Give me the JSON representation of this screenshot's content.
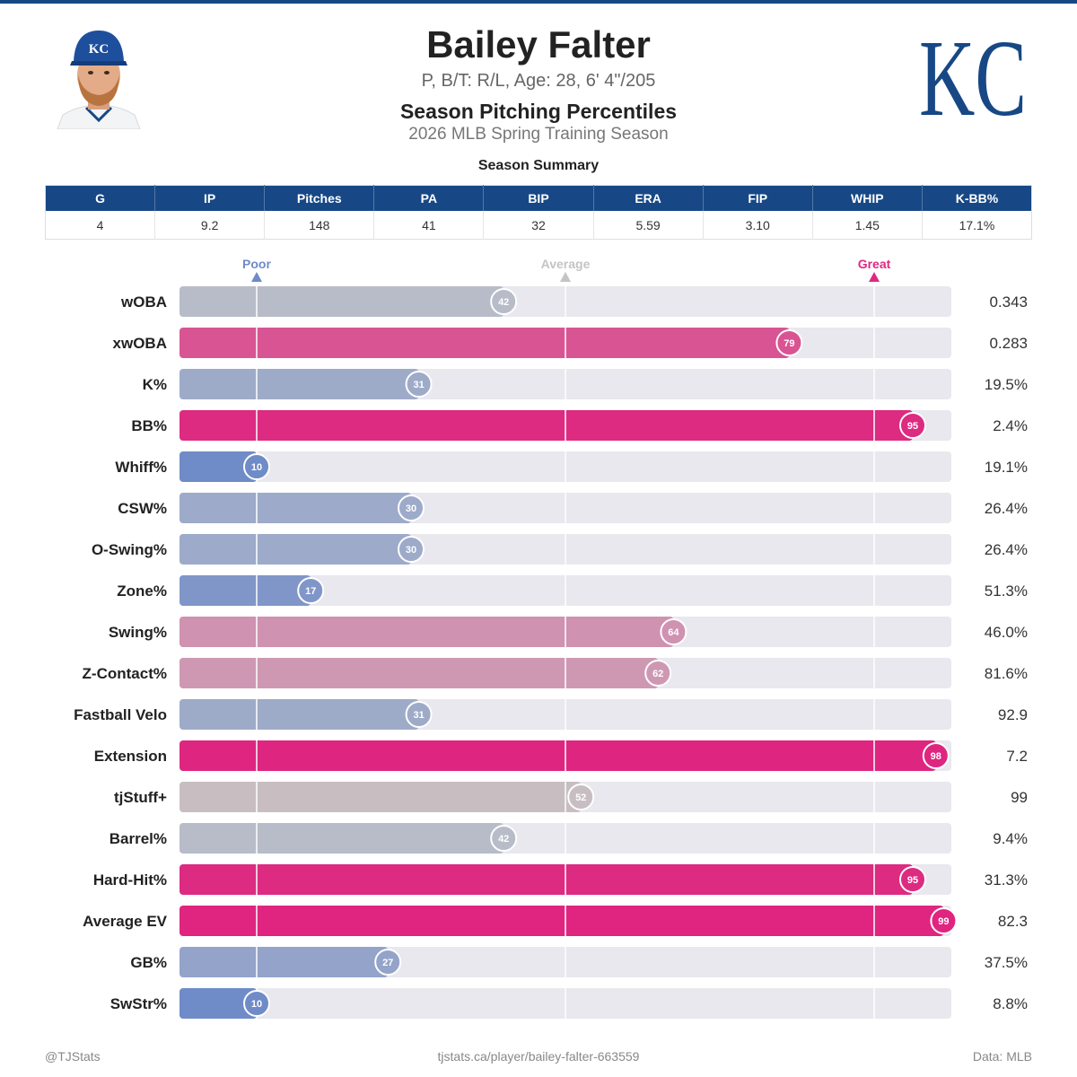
{
  "header": {
    "player_name": "Bailey Falter",
    "bio": "P, B/T: R/L, Age: 28, 6' 4\"/205",
    "report_title": "Season Pitching Percentiles",
    "season": "2026 MLB Spring Training Season",
    "team_logo_text": "KC",
    "cap_logo_text": "KC"
  },
  "summary": {
    "title": "Season Summary",
    "columns": [
      "G",
      "IP",
      "Pitches",
      "PA",
      "BIP",
      "ERA",
      "FIP",
      "WHIP",
      "K-BB%"
    ],
    "values": [
      "4",
      "9.2",
      "148",
      "41",
      "32",
      "5.59",
      "3.10",
      "1.45",
      "17.1%"
    ]
  },
  "colors": {
    "team_blue": "#174885",
    "poor": "#6f8bc8",
    "average": "#c4c4c4",
    "great": "#de2a82",
    "track": "#e8e8ee"
  },
  "chart_data": {
    "type": "bar",
    "orientation": "horizontal",
    "xlim": [
      0,
      100
    ],
    "markers": [
      {
        "label": "Poor",
        "value": 10,
        "color": "#6f8bc8"
      },
      {
        "label": "Average",
        "value": 50,
        "color": "#c4c4c4"
      },
      {
        "label": "Great",
        "value": 90,
        "color": "#de2a82"
      }
    ],
    "rows": [
      {
        "label": "wOBA",
        "percentile": 42,
        "value": "0.343",
        "color": "#b7bcc8"
      },
      {
        "label": "xwOBA",
        "percentile": 79,
        "value": "0.283",
        "color": "#d95493"
      },
      {
        "label": "K%",
        "percentile": 31,
        "value": "19.5%",
        "color": "#9eabc8"
      },
      {
        "label": "BB%",
        "percentile": 95,
        "value": "2.4%",
        "color": "#dc2b81"
      },
      {
        "label": "Whiff%",
        "percentile": 10,
        "value": "19.1%",
        "color": "#6f8bc8"
      },
      {
        "label": "CSW%",
        "percentile": 30,
        "value": "26.4%",
        "color": "#9daac9"
      },
      {
        "label": "O-Swing%",
        "percentile": 30,
        "value": "26.4%",
        "color": "#9daac9"
      },
      {
        "label": "Zone%",
        "percentile": 17,
        "value": "51.3%",
        "color": "#8096c8"
      },
      {
        "label": "Swing%",
        "percentile": 64,
        "value": "46.0%",
        "color": "#cf92b1"
      },
      {
        "label": "Z-Contact%",
        "percentile": 62,
        "value": "81.6%",
        "color": "#ce98b3"
      },
      {
        "label": "Fastball Velo",
        "percentile": 31,
        "value": "92.9",
        "color": "#9eabc8"
      },
      {
        "label": "Extension",
        "percentile": 98,
        "value": "7.2",
        "color": "#de2680"
      },
      {
        "label": "tjStuff+",
        "percentile": 52,
        "value": "99",
        "color": "#c8bec1"
      },
      {
        "label": "Barrel%",
        "percentile": 42,
        "value": "9.4%",
        "color": "#b7bcc8"
      },
      {
        "label": "Hard-Hit%",
        "percentile": 95,
        "value": "31.3%",
        "color": "#dc2b81"
      },
      {
        "label": "Average EV",
        "percentile": 99,
        "value": "82.3",
        "color": "#df2580"
      },
      {
        "label": "GB%",
        "percentile": 27,
        "value": "37.5%",
        "color": "#94a3c9"
      },
      {
        "label": "SwStr%",
        "percentile": 10,
        "value": "8.8%",
        "color": "#6f8bc8"
      }
    ]
  },
  "footer": {
    "left": "@TJStats",
    "center": "tjstats.ca/player/bailey-falter-663559",
    "right": "Data: MLB"
  }
}
